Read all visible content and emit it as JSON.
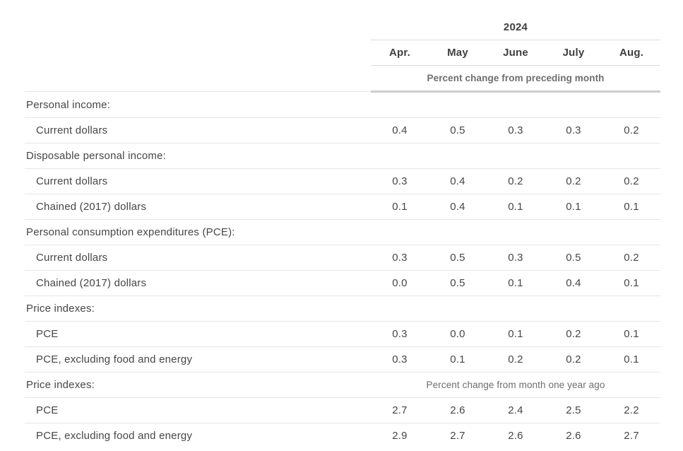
{
  "chart_data": {
    "type": "table",
    "year_header": "2024",
    "columns": [
      "Apr.",
      "May",
      "June",
      "July",
      "Aug."
    ],
    "unit_note": "Percent change from preceding month",
    "sections": [
      {
        "label": "Personal income:",
        "note": "",
        "rows": [
          {
            "label": "Current dollars",
            "values": [
              "0.4",
              "0.5",
              "0.3",
              "0.3",
              "0.2"
            ]
          }
        ]
      },
      {
        "label": "Disposable personal income:",
        "note": "",
        "rows": [
          {
            "label": "Current dollars",
            "values": [
              "0.3",
              "0.4",
              "0.2",
              "0.2",
              "0.2"
            ]
          },
          {
            "label": "Chained (2017) dollars",
            "values": [
              "0.1",
              "0.4",
              "0.1",
              "0.1",
              "0.1"
            ]
          }
        ]
      },
      {
        "label": "Personal consumption expenditures (PCE):",
        "note": "",
        "rows": [
          {
            "label": "Current dollars",
            "values": [
              "0.3",
              "0.5",
              "0.3",
              "0.5",
              "0.2"
            ]
          },
          {
            "label": "Chained (2017) dollars",
            "values": [
              "0.0",
              "0.5",
              "0.1",
              "0.4",
              "0.1"
            ]
          }
        ]
      },
      {
        "label": "Price indexes:",
        "note": "",
        "rows": [
          {
            "label": "PCE",
            "values": [
              "0.3",
              "0.0",
              "0.1",
              "0.2",
              "0.1"
            ]
          },
          {
            "label": "PCE, excluding food and energy",
            "values": [
              "0.3",
              "0.1",
              "0.2",
              "0.2",
              "0.1"
            ]
          }
        ]
      },
      {
        "label": "Price indexes:",
        "note": "Percent change from month one year ago",
        "rows": [
          {
            "label": "PCE",
            "values": [
              "2.7",
              "2.6",
              "2.4",
              "2.5",
              "2.2"
            ]
          },
          {
            "label": "PCE, excluding food and energy",
            "values": [
              "2.9",
              "2.7",
              "2.6",
              "2.6",
              "2.7"
            ]
          }
        ]
      }
    ]
  }
}
